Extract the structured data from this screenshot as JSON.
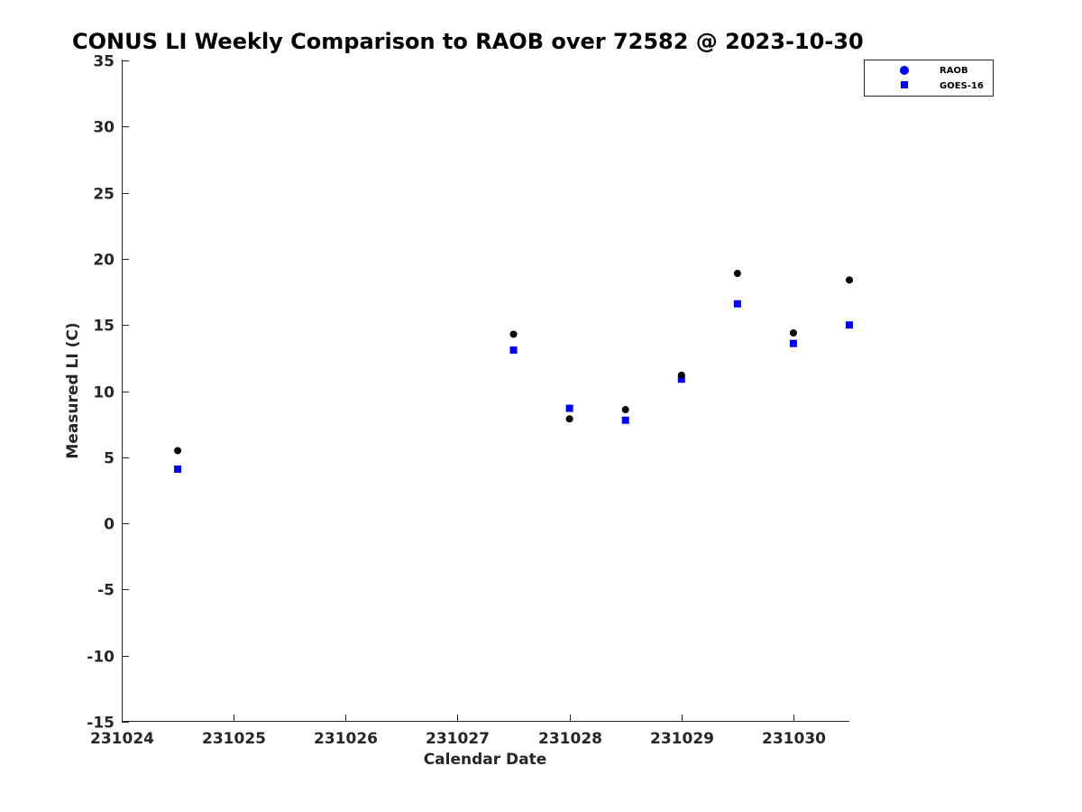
{
  "chart_data": {
    "type": "scatter",
    "title": "CONUS LI Weekly Comparison to RAOB over 72582 @ 2023-10-30",
    "xlabel": "Calendar Date",
    "ylabel": "Measured LI (C)",
    "xlim": [
      0,
      6.5
    ],
    "ylim": [
      -15,
      35
    ],
    "xticks": [
      0,
      1,
      2,
      3,
      4,
      5,
      6
    ],
    "xtick_labels": [
      "231024",
      "231025",
      "231026",
      "231027",
      "231028",
      "231029",
      "231030"
    ],
    "yticks": [
      -15,
      -10,
      -5,
      0,
      5,
      10,
      15,
      20,
      25,
      30,
      35
    ],
    "ytick_labels": [
      "-15",
      "-10",
      "-5",
      "0",
      "5",
      "10",
      "15",
      "20",
      "25",
      "30",
      "35"
    ],
    "legend_position": "top-right",
    "series": [
      {
        "name": "RAOB",
        "marker": "circle",
        "color": "#000000",
        "legend_color": "#0000ff",
        "x": [
          0.5,
          3.5,
          4.0,
          4.5,
          5.0,
          5.5,
          6.0,
          6.5
        ],
        "values": [
          5.5,
          14.3,
          7.9,
          8.6,
          11.2,
          18.9,
          14.4,
          18.4
        ]
      },
      {
        "name": "GOES-16",
        "marker": "square",
        "color": "#0000ff",
        "legend_color": "#0000ff",
        "x": [
          0.5,
          3.5,
          4.0,
          4.5,
          5.0,
          5.5,
          6.0,
          6.5
        ],
        "values": [
          4.1,
          13.1,
          8.7,
          7.8,
          10.9,
          16.6,
          13.6,
          15.0
        ]
      }
    ]
  }
}
